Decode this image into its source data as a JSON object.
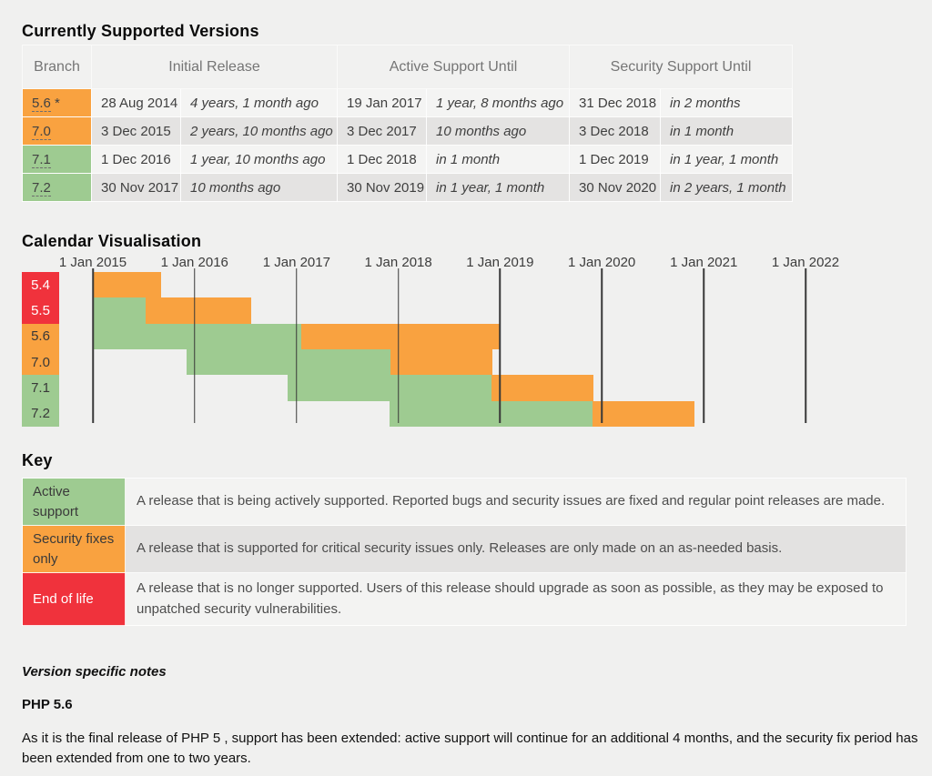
{
  "colors": {
    "page_bg": "#f0f0ef",
    "active": "#9ecb91",
    "security": "#f9a240",
    "eol": "#f0323c"
  },
  "supported_versions": {
    "title": "Currently Supported Versions",
    "columns": [
      "Branch",
      "Initial Release",
      "Active Support Until",
      "Security Support Until"
    ],
    "rows": [
      {
        "branch": "5.6",
        "branch_suffix": "*",
        "status": "security",
        "initial_release": {
          "date": "28 Aug 2014",
          "relative": "4 years, 1 month ago"
        },
        "active_until": {
          "date": "19 Jan 2017",
          "relative": "1 year, 8 months ago"
        },
        "security_until": {
          "date": "31 Dec 2018",
          "relative": "in 2 months"
        }
      },
      {
        "branch": "7.0",
        "branch_suffix": "",
        "status": "security",
        "initial_release": {
          "date": "3 Dec 2015",
          "relative": "2 years, 10 months ago"
        },
        "active_until": {
          "date": "3 Dec 2017",
          "relative": "10 months ago"
        },
        "security_until": {
          "date": "3 Dec 2018",
          "relative": "in 1 month"
        }
      },
      {
        "branch": "7.1",
        "branch_suffix": "",
        "status": "active",
        "initial_release": {
          "date": "1 Dec 2016",
          "relative": "1 year, 10 months ago"
        },
        "active_until": {
          "date": "1 Dec 2018",
          "relative": "in 1 month"
        },
        "security_until": {
          "date": "1 Dec 2019",
          "relative": "in 1 year, 1 month"
        }
      },
      {
        "branch": "7.2",
        "branch_suffix": "",
        "status": "active",
        "initial_release": {
          "date": "30 Nov 2017",
          "relative": "10 months ago"
        },
        "active_until": {
          "date": "30 Nov 2019",
          "relative": "in 1 year, 1 month"
        },
        "security_until": {
          "date": "30 Nov 2020",
          "relative": "in 2 years, 1 month"
        }
      }
    ]
  },
  "chart_data": {
    "type": "timeline",
    "title": "Calendar Visualisation",
    "x_axis": {
      "range": [
        "2015-01-01",
        "2022-01-01"
      ],
      "tick_dates": [
        "2015-01-01",
        "2016-01-01",
        "2017-01-01",
        "2018-01-01",
        "2019-01-01",
        "2020-01-01",
        "2021-01-01",
        "2022-01-01"
      ],
      "tick_labels": [
        "1 Jan 2015",
        "1 Jan 2016",
        "1 Jan 2017",
        "1 Jan 2018",
        "1 Jan 2019",
        "1 Jan 2020",
        "1 Jan 2021",
        "1 Jan 2022"
      ]
    },
    "rows": [
      {
        "version": "5.4",
        "status": "eol",
        "segments": [
          {
            "kind": "security",
            "start": "2015-01-01",
            "end": "2015-09-03"
          }
        ]
      },
      {
        "version": "5.5",
        "status": "eol",
        "segments": [
          {
            "kind": "active",
            "start": "2015-01-01",
            "end": "2015-07-10"
          },
          {
            "kind": "security",
            "start": "2015-07-10",
            "end": "2016-07-21"
          }
        ]
      },
      {
        "version": "5.6",
        "status": "security",
        "segments": [
          {
            "kind": "active",
            "start": "2015-01-01",
            "end": "2017-01-19"
          },
          {
            "kind": "security",
            "start": "2017-01-19",
            "end": "2018-12-31"
          }
        ]
      },
      {
        "version": "7.0",
        "status": "security",
        "segments": [
          {
            "kind": "active",
            "start": "2015-12-03",
            "end": "2017-12-03"
          },
          {
            "kind": "security",
            "start": "2017-12-03",
            "end": "2018-12-03"
          }
        ]
      },
      {
        "version": "7.1",
        "status": "active",
        "segments": [
          {
            "kind": "active",
            "start": "2016-12-01",
            "end": "2018-12-01"
          },
          {
            "kind": "security",
            "start": "2018-12-01",
            "end": "2019-12-01"
          }
        ]
      },
      {
        "version": "7.2",
        "status": "active",
        "segments": [
          {
            "kind": "active",
            "start": "2017-11-30",
            "end": "2019-11-30"
          },
          {
            "kind": "security",
            "start": "2019-11-30",
            "end": "2020-11-30"
          }
        ]
      }
    ]
  },
  "key": {
    "title": "Key",
    "rows": [
      {
        "kind": "active",
        "label": "Active support",
        "description": "A release that is being actively supported. Reported bugs and security issues are fixed and regular point releases are made."
      },
      {
        "kind": "security",
        "label": "Security fixes only",
        "description": "A release that is supported for critical security issues only. Releases are only made on an as-needed basis."
      },
      {
        "kind": "eol",
        "label": "End of life",
        "description": "A release that is no longer supported. Users of this release should upgrade as soon as possible, as they may be exposed to unpatched security vulnerabilities."
      }
    ]
  },
  "notes": {
    "heading": "Version specific notes",
    "subheading": "PHP 5.6",
    "paragraph": "As it is the final release of PHP 5 , support has been extended: active support will continue for an additional 4 months, and the security fix period has been extended from one to two years."
  }
}
